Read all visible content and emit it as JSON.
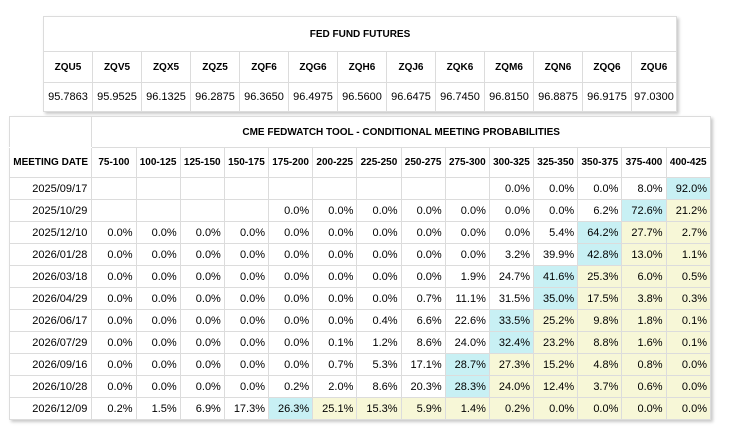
{
  "futures": {
    "title": "FED FUND FUTURES",
    "contracts": [
      {
        "code": "ZQU5",
        "price": "95.7863"
      },
      {
        "code": "ZQV5",
        "price": "95.9525"
      },
      {
        "code": "ZQX5",
        "price": "96.1325"
      },
      {
        "code": "ZQZ5",
        "price": "96.2875"
      },
      {
        "code": "ZQF6",
        "price": "96.3650"
      },
      {
        "code": "ZQG6",
        "price": "96.4975"
      },
      {
        "code": "ZQH6",
        "price": "96.5600"
      },
      {
        "code": "ZQJ6",
        "price": "96.6475"
      },
      {
        "code": "ZQK6",
        "price": "96.7450"
      },
      {
        "code": "ZQM6",
        "price": "96.8150"
      },
      {
        "code": "ZQN6",
        "price": "96.8875"
      },
      {
        "code": "ZQQ6",
        "price": "96.9175"
      },
      {
        "code": "ZQU6",
        "price": "97.0300"
      }
    ]
  },
  "fedwatch": {
    "title": "CME FEDWATCH TOOL - CONDITIONAL MEETING PROBABILITIES",
    "meeting_header": "MEETING DATE",
    "ranges": [
      "75-100",
      "100-125",
      "125-150",
      "150-175",
      "175-200",
      "200-225",
      "225-250",
      "250-275",
      "275-300",
      "300-325",
      "325-350",
      "350-375",
      "375-400",
      "400-425"
    ],
    "colors": {
      "highlight": "#c8f0f4",
      "shade": "#f7f7d7"
    },
    "rows": [
      {
        "date": "2025/09/17",
        "values": [
          "",
          "",
          "",
          "",
          "",
          "",
          "",
          "",
          "",
          "0.0%",
          "0.0%",
          "0.0%",
          "8.0%",
          "92.0%"
        ],
        "hl": 13,
        "shade_from": 99
      },
      {
        "date": "2025/10/29",
        "values": [
          "",
          "",
          "",
          "",
          "0.0%",
          "0.0%",
          "0.0%",
          "0.0%",
          "0.0%",
          "0.0%",
          "0.0%",
          "6.2%",
          "72.6%",
          "21.2%"
        ],
        "hl": 12,
        "shade_from": 13
      },
      {
        "date": "2025/12/10",
        "values": [
          "0.0%",
          "0.0%",
          "0.0%",
          "0.0%",
          "0.0%",
          "0.0%",
          "0.0%",
          "0.0%",
          "0.0%",
          "0.0%",
          "5.4%",
          "64.2%",
          "27.7%",
          "2.7%"
        ],
        "hl": 11,
        "shade_from": 12
      },
      {
        "date": "2026/01/28",
        "values": [
          "0.0%",
          "0.0%",
          "0.0%",
          "0.0%",
          "0.0%",
          "0.0%",
          "0.0%",
          "0.0%",
          "0.0%",
          "3.2%",
          "39.9%",
          "42.8%",
          "13.0%",
          "1.1%"
        ],
        "hl": 11,
        "shade_from": 12
      },
      {
        "date": "2026/03/18",
        "values": [
          "0.0%",
          "0.0%",
          "0.0%",
          "0.0%",
          "0.0%",
          "0.0%",
          "0.0%",
          "0.0%",
          "1.9%",
          "24.7%",
          "41.6%",
          "25.3%",
          "6.0%",
          "0.5%"
        ],
        "hl": 10,
        "shade_from": 11
      },
      {
        "date": "2026/04/29",
        "values": [
          "0.0%",
          "0.0%",
          "0.0%",
          "0.0%",
          "0.0%",
          "0.0%",
          "0.0%",
          "0.7%",
          "11.1%",
          "31.5%",
          "35.0%",
          "17.5%",
          "3.8%",
          "0.3%"
        ],
        "hl": 10,
        "shade_from": 11
      },
      {
        "date": "2026/06/17",
        "values": [
          "0.0%",
          "0.0%",
          "0.0%",
          "0.0%",
          "0.0%",
          "0.0%",
          "0.4%",
          "6.6%",
          "22.6%",
          "33.5%",
          "25.2%",
          "9.8%",
          "1.8%",
          "0.1%"
        ],
        "hl": 9,
        "shade_from": 10
      },
      {
        "date": "2026/07/29",
        "values": [
          "0.0%",
          "0.0%",
          "0.0%",
          "0.0%",
          "0.0%",
          "0.1%",
          "1.2%",
          "8.6%",
          "24.0%",
          "32.4%",
          "23.2%",
          "8.8%",
          "1.6%",
          "0.1%"
        ],
        "hl": 9,
        "shade_from": 10
      },
      {
        "date": "2026/09/16",
        "values": [
          "0.0%",
          "0.0%",
          "0.0%",
          "0.0%",
          "0.0%",
          "0.7%",
          "5.3%",
          "17.1%",
          "28.7%",
          "27.3%",
          "15.2%",
          "4.8%",
          "0.8%",
          "0.0%"
        ],
        "hl": 8,
        "shade_from": 9
      },
      {
        "date": "2026/10/28",
        "values": [
          "0.0%",
          "0.0%",
          "0.0%",
          "0.0%",
          "0.2%",
          "2.0%",
          "8.6%",
          "20.3%",
          "28.3%",
          "24.0%",
          "12.4%",
          "3.7%",
          "0.6%",
          "0.0%"
        ],
        "hl": 8,
        "shade_from": 9
      },
      {
        "date": "2026/12/09",
        "values": [
          "0.2%",
          "1.5%",
          "6.9%",
          "17.3%",
          "26.3%",
          "25.1%",
          "15.3%",
          "5.9%",
          "1.4%",
          "0.2%",
          "0.0%",
          "0.0%",
          "0.0%",
          "0.0%"
        ],
        "hl": 4,
        "shade_from": 5
      }
    ]
  }
}
